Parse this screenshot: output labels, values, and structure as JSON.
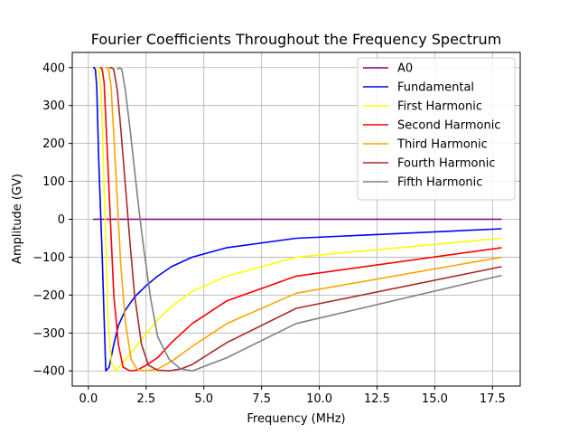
{
  "chart_data": {
    "type": "line",
    "title": "Fourier Coefficients Throughout the Frequency Spectrum",
    "xlabel": "Frequency (MHz)",
    "ylabel": "Amplitude (GV)",
    "xlim": [
      -0.7,
      18.7
    ],
    "ylim": [
      -440,
      440
    ],
    "xticks": [
      0,
      2.5,
      5,
      7.5,
      10,
      12.5,
      15,
      17.5
    ],
    "xtick_labels": [
      "0.0",
      "2.5",
      "5.0",
      "7.5",
      "10.0",
      "12.5",
      "15.0",
      "17.5"
    ],
    "yticks": [
      -400,
      -300,
      -200,
      -100,
      0,
      100,
      200,
      300,
      400
    ],
    "ytick_labels": [
      "−400",
      "−300",
      "−200",
      "−100",
      "0",
      "100",
      "200",
      "300",
      "400"
    ],
    "grid": true,
    "legend_position": "top-right",
    "series": [
      {
        "name": "A0",
        "color": "#800080",
        "x": [
          0.2,
          0.3,
          0.5,
          1.0,
          2.0,
          4.0,
          8.0,
          12.0,
          17.9
        ],
        "y": [
          0,
          0,
          0,
          0,
          0,
          0,
          0,
          0,
          0
        ]
      },
      {
        "name": "Fundamental",
        "color": "#0000ff",
        "x": [
          0.2,
          0.25,
          0.3,
          0.36,
          0.45,
          0.6,
          0.75,
          0.9,
          1.1,
          1.3,
          1.6,
          2.0,
          2.5,
          3.0,
          3.6,
          4.5,
          6.0,
          9.0,
          17.9
        ],
        "y": [
          400,
          400,
          395,
          350,
          150,
          -100,
          -400,
          -390,
          -330,
          -280,
          -240,
          -205,
          -175,
          -150,
          -125,
          -100,
          -75,
          -50,
          -25
        ]
      },
      {
        "name": "First Harmonic",
        "color": "#ffff00",
        "x": [
          0.35,
          0.4,
          0.45,
          0.55,
          0.65,
          0.75,
          0.85,
          1.0,
          1.2,
          1.45,
          1.8,
          2.2,
          2.6,
          3.0,
          3.6,
          4.5,
          6.0,
          9.0,
          17.9
        ],
        "y": [
          400,
          400,
          395,
          330,
          150,
          -60,
          -270,
          -380,
          -400,
          -380,
          -355,
          -325,
          -295,
          -265,
          -230,
          -190,
          -150,
          -100,
          -50
        ]
      },
      {
        "name": "Second Harmonic",
        "color": "#ff0000",
        "x": [
          0.5,
          0.55,
          0.6,
          0.68,
          0.8,
          0.95,
          1.1,
          1.3,
          1.5,
          1.8,
          2.1,
          2.5,
          3.0,
          3.6,
          4.5,
          6.0,
          9.0,
          17.9
        ],
        "y": [
          400,
          400,
          395,
          360,
          200,
          0,
          -200,
          -330,
          -390,
          -400,
          -398,
          -385,
          -365,
          -325,
          -275,
          -215,
          -150,
          -75
        ]
      },
      {
        "name": "Third Harmonic",
        "color": "#ffa500",
        "x": [
          0.72,
          0.8,
          0.88,
          0.98,
          1.1,
          1.25,
          1.4,
          1.6,
          1.85,
          2.1,
          2.4,
          2.7,
          3.0,
          3.6,
          4.5,
          6.0,
          9.0,
          17.9
        ],
        "y": [
          400,
          400,
          395,
          350,
          220,
          50,
          -120,
          -270,
          -370,
          -395,
          -400,
          -398,
          -395,
          -375,
          -335,
          -275,
          -195,
          -100
        ]
      },
      {
        "name": "Fourth Harmonic",
        "color": "#a52a2a",
        "x": [
          0.9,
          1.0,
          1.1,
          1.25,
          1.4,
          1.6,
          1.8,
          2.0,
          2.3,
          2.6,
          3.0,
          3.5,
          4.0,
          4.5,
          6.0,
          9.0,
          17.9
        ],
        "y": [
          400,
          400,
          395,
          340,
          240,
          90,
          -60,
          -200,
          -330,
          -385,
          -398,
          -400,
          -395,
          -383,
          -325,
          -235,
          -125
        ]
      },
      {
        "name": "Fifth Harmonic",
        "color": "#808080",
        "x": [
          1.25,
          1.35,
          1.45,
          1.6,
          1.8,
          2.0,
          2.2,
          2.4,
          2.7,
          3.0,
          3.5,
          4.0,
          4.5,
          6.0,
          9.0,
          17.9
        ],
        "y": [
          395,
          400,
          395,
          340,
          240,
          130,
          20,
          -80,
          -210,
          -310,
          -370,
          -395,
          -400,
          -365,
          -275,
          -148
        ]
      }
    ]
  }
}
